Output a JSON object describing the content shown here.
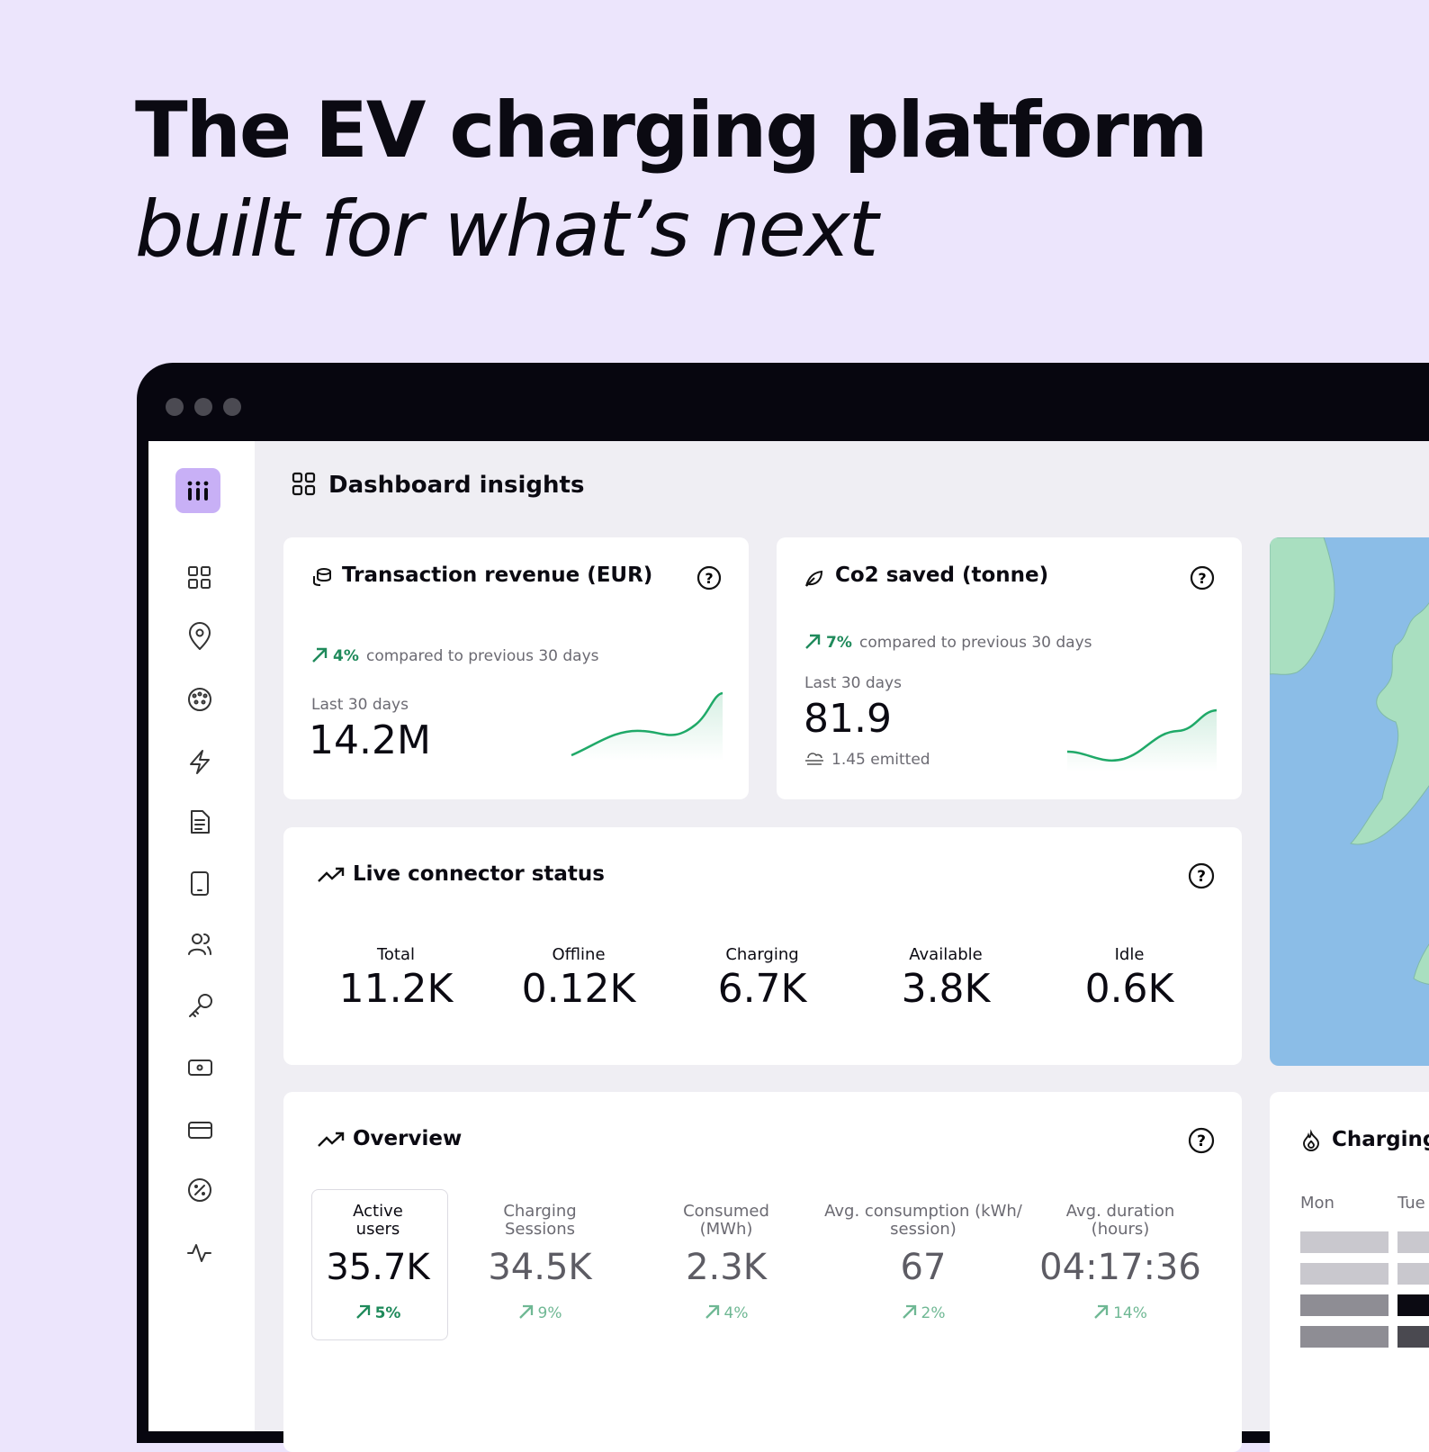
{
  "headline": {
    "line1": "The EV charging platform",
    "line2": "built for what’s next"
  },
  "dashboard": {
    "title": "Dashboard insights"
  },
  "cards": [
    {
      "title": "Transaction revenue (EUR)",
      "change": "4%",
      "comparison": "compared to previous 30 days",
      "period": "Last 30 days",
      "value": "14.2M"
    },
    {
      "title": "Co2 saved (tonne)",
      "change": "7%",
      "comparison": "compared to previous 30 days",
      "period": "Last 30 days",
      "value": "81.9",
      "note": "1.45 emitted"
    }
  ],
  "live_status": {
    "title": "Live connector status",
    "items": [
      {
        "label": "Total",
        "value": "11.2K"
      },
      {
        "label": "Offline",
        "value": "0.12K"
      },
      {
        "label": "Charging",
        "value": "6.7K"
      },
      {
        "label": "Available",
        "value": "3.8K"
      },
      {
        "label": "Idle",
        "value": "0.6K"
      }
    ]
  },
  "overview": {
    "title": "Overview",
    "items": [
      {
        "label": "Active users",
        "value": "35.7K",
        "change": "5%"
      },
      {
        "label": "Charging Sessions",
        "value": "34.5K",
        "change": "9%"
      },
      {
        "label": "Consumed (MWh)",
        "value": "2.3K",
        "change": "4%"
      },
      {
        "label": "Avg. consumption (kWh/ session)",
        "value": "67",
        "change": "2%"
      },
      {
        "label": "Avg. duration (hours)",
        "value": "04:17:36",
        "change": "14%"
      }
    ]
  },
  "charging": {
    "title": "Charging",
    "days": [
      "Mon",
      "Tue"
    ]
  }
}
